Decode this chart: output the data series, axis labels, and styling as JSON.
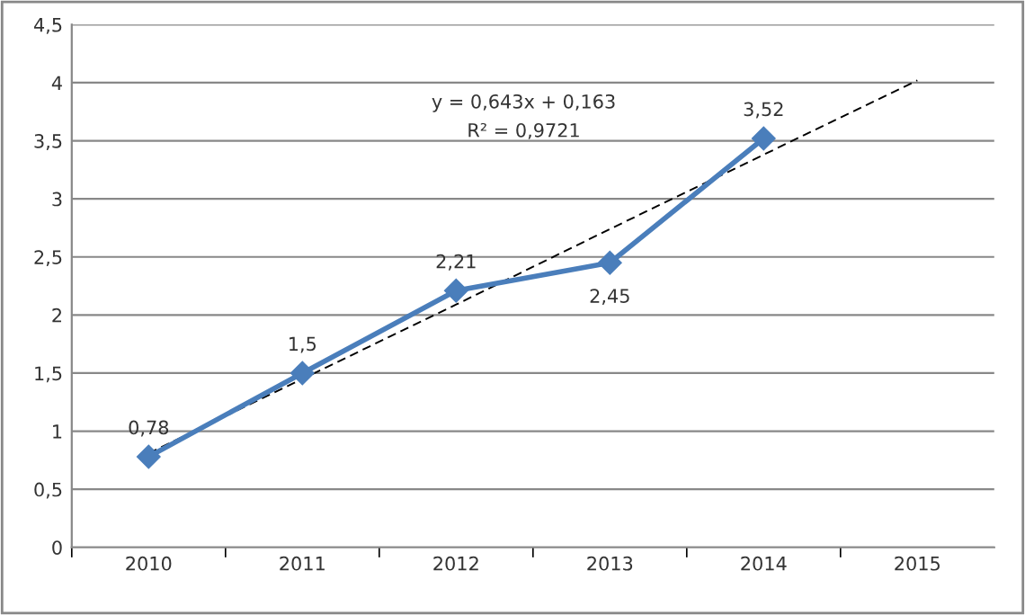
{
  "chart_data": {
    "type": "line",
    "categories": [
      "2010",
      "2011",
      "2012",
      "2013",
      "2014",
      "2015"
    ],
    "series": [
      {
        "color": "#4a7ebb",
        "values": [
          0.78,
          1.5,
          2.21,
          2.45,
          3.52,
          null
        ],
        "value_labels": [
          "0,78",
          "1,5",
          "2,21",
          "2,45",
          "3,52",
          null
        ],
        "marker": "diamond",
        "line_style": "solid"
      },
      {
        "type": "line",
        "color": "#000000",
        "values": [
          0.81,
          1.45,
          2.09,
          2.74,
          3.38,
          4.02
        ],
        "marker": "none",
        "line_style": "dashed"
      }
    ],
    "ylim": [
      0,
      4.5
    ],
    "yticks": [
      0,
      {
        "value": 0.5,
        "label": "0,5"
      },
      1,
      {
        "value": 1.5,
        "label": "1,5"
      },
      2,
      {
        "value": 2.5,
        "label": "2,5"
      },
      3,
      {
        "value": 3.5,
        "label": "3,5"
      },
      4,
      {
        "value": 4.5,
        "label": "4,5"
      }
    ],
    "grid": "y",
    "annotations": [
      "y = 0,643x + 0,163",
      "R² = 0,9721"
    ]
  }
}
